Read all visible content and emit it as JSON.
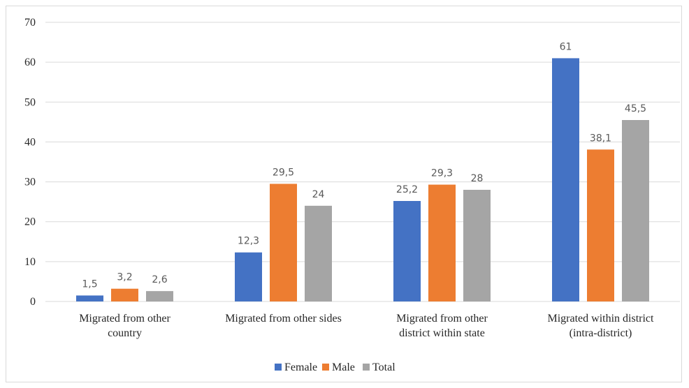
{
  "chart_data": {
    "type": "bar",
    "categories": [
      [
        "Migrated from other",
        "country"
      ],
      [
        "Migrated from other sides"
      ],
      [
        "Migrated from other",
        "district within state"
      ],
      [
        "Migrated within district",
        "(intra-district)"
      ]
    ],
    "series": [
      {
        "name": "Female",
        "color": "#4472c4",
        "values": [
          1.5,
          12.3,
          25.2,
          61
        ],
        "labels": [
          "1,5",
          "12,3",
          "25,2",
          "61"
        ]
      },
      {
        "name": "Male",
        "color": "#ed7d31",
        "values": [
          3.2,
          29.5,
          29.3,
          38.1
        ],
        "labels": [
          "3,2",
          "29,5",
          "29,3",
          "38,1"
        ]
      },
      {
        "name": "Total",
        "color": "#a5a5a5",
        "values": [
          2.6,
          24,
          28,
          45.5
        ],
        "labels": [
          "2,6",
          "24",
          "28",
          "45,5"
        ]
      }
    ],
    "ylim": [
      0,
      70
    ],
    "yticks": [
      "0",
      "10",
      "20",
      "30",
      "40",
      "50",
      "60",
      "70"
    ],
    "grid": true,
    "legend": "bottom"
  }
}
